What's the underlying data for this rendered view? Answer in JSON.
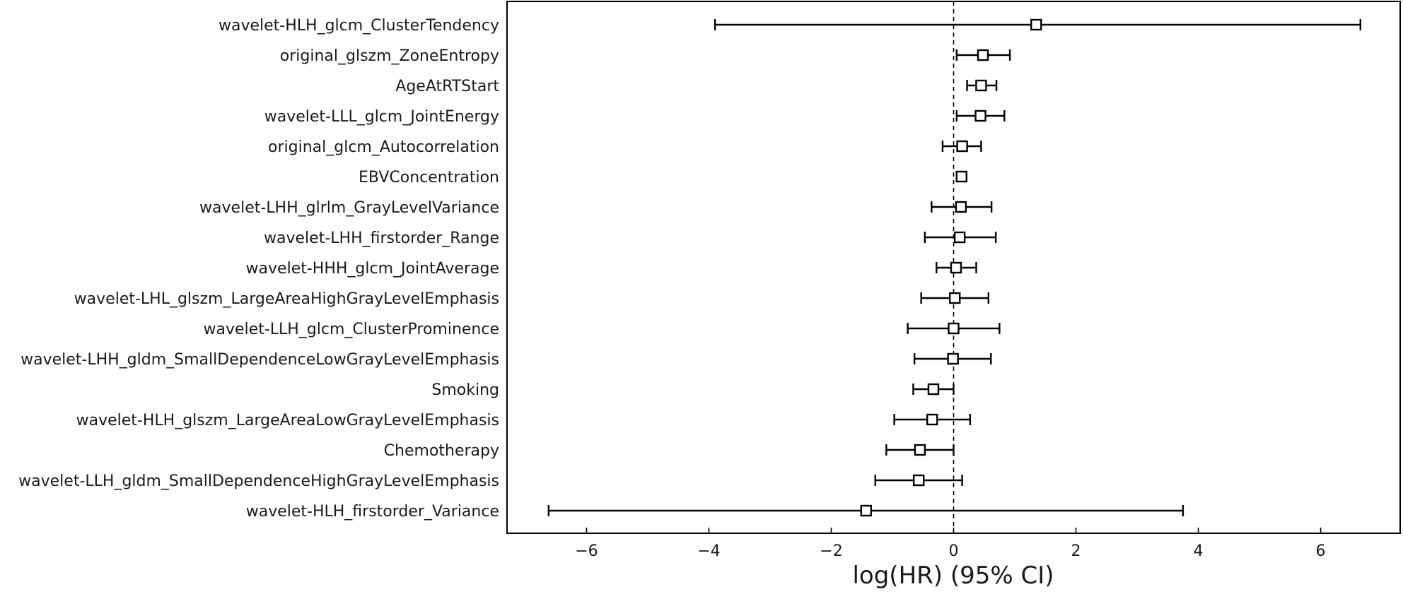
{
  "chart_data": {
    "type": "forest",
    "xlabel": "log(HR) (95% CI)",
    "xlim": [
      -7.3,
      7.3
    ],
    "xticks": [
      -6,
      -4,
      -2,
      0,
      2,
      4,
      6
    ],
    "xtick_labels": [
      "−6",
      "−4",
      "−2",
      "0",
      "2",
      "4",
      "6"
    ],
    "reference_line": 0,
    "rows": [
      {
        "label": "wavelet-HLH_glcm_ClusterTendency",
        "estimate": 1.35,
        "lower": -3.9,
        "upper": 6.65
      },
      {
        "label": "original_glszm_ZoneEntropy",
        "estimate": 0.48,
        "lower": 0.05,
        "upper": 0.92
      },
      {
        "label": "AgeAtRTStart",
        "estimate": 0.45,
        "lower": 0.22,
        "upper": 0.7
      },
      {
        "label": "wavelet-LLL_glcm_JointEnergy",
        "estimate": 0.44,
        "lower": 0.05,
        "upper": 0.83
      },
      {
        "label": "original_glcm_Autocorrelation",
        "estimate": 0.14,
        "lower": -0.18,
        "upper": 0.45
      },
      {
        "label": "EBVConcentration",
        "estimate": 0.13,
        "lower": 0.07,
        "upper": 0.18
      },
      {
        "label": "wavelet-LHH_glrlm_GrayLevelVariance",
        "estimate": 0.12,
        "lower": -0.36,
        "upper": 0.62
      },
      {
        "label": "wavelet-LHH_firstorder_Range",
        "estimate": 0.1,
        "lower": -0.47,
        "upper": 0.69
      },
      {
        "label": "wavelet-HHH_glcm_JointAverage",
        "estimate": 0.04,
        "lower": -0.28,
        "upper": 0.37
      },
      {
        "label": "wavelet-LHL_glszm_LargeAreaHighGrayLevelEmphasis",
        "estimate": 0.02,
        "lower": -0.53,
        "upper": 0.57
      },
      {
        "label": "wavelet-LLH_glcm_ClusterProminence",
        "estimate": 0.0,
        "lower": -0.75,
        "upper": 0.75
      },
      {
        "label": "wavelet-LHH_gldm_SmallDependenceLowGrayLevelEmphasis",
        "estimate": -0.01,
        "lower": -0.64,
        "upper": 0.61
      },
      {
        "label": "Smoking",
        "estimate": -0.33,
        "lower": -0.66,
        "upper": 0.0
      },
      {
        "label": "wavelet-HLH_glszm_LargeAreaLowGrayLevelEmphasis",
        "estimate": -0.35,
        "lower": -0.97,
        "upper": 0.27
      },
      {
        "label": "Chemotherapy",
        "estimate": -0.55,
        "lower": -1.1,
        "upper": 0.0
      },
      {
        "label": "wavelet-LLH_gldm_SmallDependenceHighGrayLevelEmphasis",
        "estimate": -0.57,
        "lower": -1.28,
        "upper": 0.14
      },
      {
        "label": "wavelet-HLH_firstorder_Variance",
        "estimate": -1.43,
        "lower": -6.62,
        "upper": 3.75
      }
    ]
  }
}
